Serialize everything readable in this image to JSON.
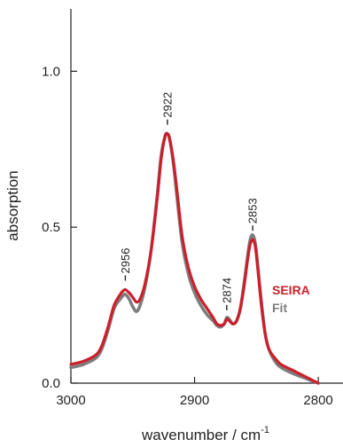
{
  "chart_data": {
    "type": "line",
    "xlabel": "wavenumber / cm",
    "xlabel_sup": "-1",
    "ylabel": "absorption",
    "xlim": [
      3000,
      2780
    ],
    "ylim": [
      0,
      1.2
    ],
    "x_ticks": [
      {
        "value": 3000,
        "label": "3000"
      },
      {
        "value": 2900,
        "label": "2900"
      },
      {
        "value": 2800,
        "label": "2800"
      }
    ],
    "y_ticks": [
      {
        "value": 0.0,
        "label": "0.0"
      },
      {
        "value": 0.5,
        "label": "0.5"
      },
      {
        "value": 1.0,
        "label": "1.0"
      }
    ],
    "legend_position": "right",
    "series": [
      {
        "name": "SEIRA",
        "color": "#cc1f2b",
        "x": [
          3000,
          2990,
          2980,
          2975,
          2970,
          2965,
          2960,
          2958,
          2956,
          2953,
          2950,
          2947,
          2944,
          2940,
          2935,
          2930,
          2927,
          2924,
          2922,
          2920,
          2917,
          2914,
          2910,
          2905,
          2900,
          2895,
          2890,
          2885,
          2882,
          2879,
          2876,
          2874,
          2872,
          2869,
          2866,
          2863,
          2860,
          2857,
          2855,
          2853,
          2851,
          2849,
          2846,
          2843,
          2840,
          2835,
          2830,
          2820,
          2810,
          2800
        ],
        "y": [
          0.06,
          0.07,
          0.09,
          0.12,
          0.18,
          0.25,
          0.285,
          0.295,
          0.3,
          0.29,
          0.275,
          0.26,
          0.27,
          0.32,
          0.43,
          0.6,
          0.72,
          0.79,
          0.8,
          0.78,
          0.71,
          0.61,
          0.47,
          0.37,
          0.31,
          0.27,
          0.24,
          0.21,
          0.19,
          0.185,
          0.19,
          0.205,
          0.2,
          0.19,
          0.2,
          0.24,
          0.31,
          0.4,
          0.445,
          0.46,
          0.44,
          0.37,
          0.25,
          0.16,
          0.11,
          0.08,
          0.06,
          0.04,
          0.02,
          0.0
        ]
      },
      {
        "name": "Fit",
        "color": "#7d7d7d",
        "x": [
          3000,
          2990,
          2980,
          2975,
          2970,
          2965,
          2960,
          2958,
          2956,
          2953,
          2950,
          2947,
          2944,
          2940,
          2935,
          2930,
          2927,
          2924,
          2922,
          2920,
          2917,
          2914,
          2910,
          2905,
          2900,
          2895,
          2890,
          2885,
          2882,
          2879,
          2876,
          2874,
          2872,
          2869,
          2866,
          2863,
          2860,
          2857,
          2855,
          2853,
          2851,
          2849,
          2846,
          2843,
          2840,
          2835,
          2830,
          2820,
          2810,
          2800
        ],
        "y": [
          0.05,
          0.06,
          0.08,
          0.11,
          0.17,
          0.24,
          0.27,
          0.28,
          0.285,
          0.27,
          0.245,
          0.23,
          0.25,
          0.31,
          0.43,
          0.61,
          0.73,
          0.79,
          0.8,
          0.78,
          0.7,
          0.59,
          0.45,
          0.35,
          0.29,
          0.25,
          0.22,
          0.2,
          0.185,
          0.18,
          0.19,
          0.21,
          0.205,
          0.19,
          0.2,
          0.24,
          0.32,
          0.41,
          0.46,
          0.475,
          0.45,
          0.38,
          0.26,
          0.16,
          0.11,
          0.07,
          0.05,
          0.03,
          0.015,
          0.0
        ]
      }
    ],
    "annotations": [
      {
        "text": "2956",
        "x": 2956,
        "y": 0.3
      },
      {
        "text": "2922",
        "x": 2922,
        "y": 0.8
      },
      {
        "text": "2874",
        "x": 2874,
        "y": 0.205
      },
      {
        "text": "2853",
        "x": 2853,
        "y": 0.46
      }
    ]
  }
}
